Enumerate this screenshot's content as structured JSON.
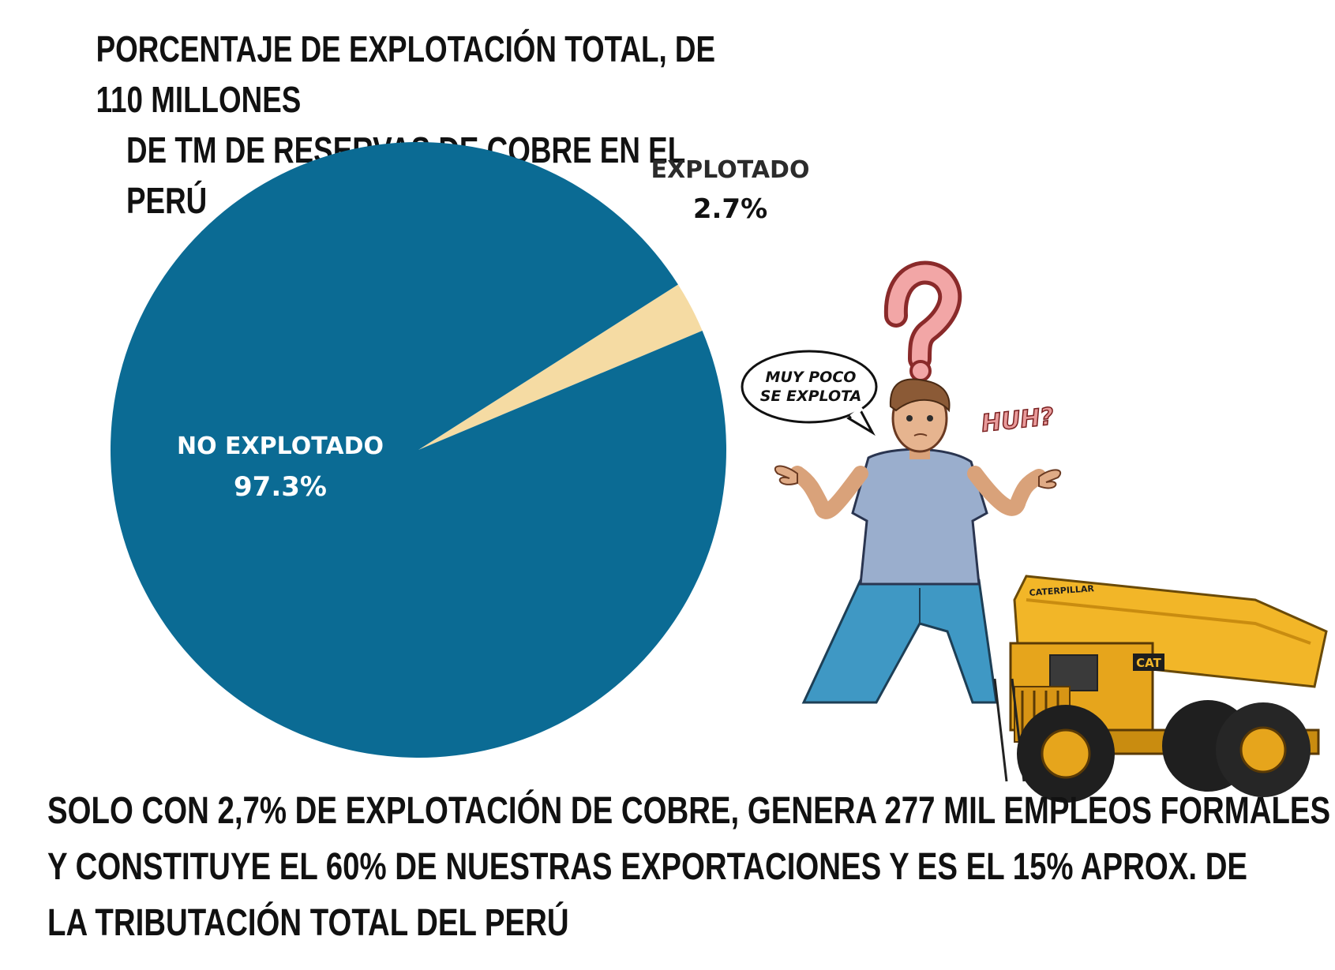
{
  "title": {
    "line1": "PORCENTAJE DE EXPLOTACIÓN TOTAL, DE 110 MILLONES",
    "line2": "DE TM DE RESERVAS DE COBRE EN EL PERÚ"
  },
  "chart_data": {
    "type": "pie",
    "title": "PORCENTAJE DE EXPLOTACIÓN TOTAL, DE 110 MILLONES DE TM DE RESERVAS DE COBRE EN EL PERÚ",
    "slices": [
      {
        "label": "EXPLOTADO",
        "value": 2.7,
        "value_label": "2.7%",
        "color": "#f5dba3"
      },
      {
        "label": "NO EXPLOTADO",
        "value": 97.3,
        "value_label": "97.3%",
        "color": "#0b6b94"
      }
    ]
  },
  "illustration": {
    "speech_bubble": {
      "line1": "MUY POCO",
      "line2": "SE EXPLOTA"
    },
    "exclamation": "HUH?",
    "truck_brand": "CATERPILLAR",
    "truck_badge": "CAT"
  },
  "footer": {
    "line1": "SOLO CON 2,7% DE EXPLOTACIÓN DE COBRE, GENERA 277 MIL EMPLEOS FORMALES",
    "line2": "Y CONSTITUYE EL 60% DE NUESTRAS EXPORTACIONES Y ES EL 15% APROX. DE",
    "line3": "LA TRIBUTACIÓN TOTAL DEL PERÚ"
  }
}
